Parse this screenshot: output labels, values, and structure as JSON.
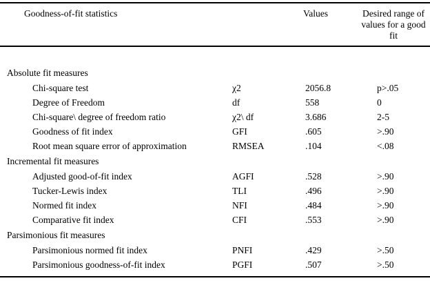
{
  "table": {
    "header": {
      "statistics_label": "Goodness-of-fit statistics",
      "values_label": "Values",
      "desired_label": "Desired range of values for a good fit"
    },
    "sections": [
      {
        "title": "Absolute fit measures",
        "rows": [
          {
            "label": "Chi-square test",
            "symbol": "χ2",
            "value": "2056.8",
            "desired": "p>.05"
          },
          {
            "label": "Degree of Freedom",
            "symbol": "df",
            "value": "558",
            "desired": "0"
          },
          {
            "label": "Chi-square\\ degree of freedom ratio",
            "symbol": "χ2\\ df",
            "value": "3.686",
            "desired": "2-5"
          },
          {
            "label": "Goodness of fit index",
            "symbol": "GFI",
            "value": ".605",
            "desired": ">.90"
          },
          {
            "label": "Root mean square error of approximation",
            "symbol": "RMSEA",
            "value": ".104",
            "desired": "<.08"
          }
        ]
      },
      {
        "title": "Incremental fit measures",
        "rows": [
          {
            "label": "Adjusted good-of-fit index",
            "symbol": "AGFI",
            "value": ".528",
            "desired": ">.90"
          },
          {
            "label": "Tucker-Lewis index",
            "symbol": "TLI",
            "value": ".496",
            "desired": ">.90"
          },
          {
            "label": "Normed fit index",
            "symbol": "NFI",
            "value": ".484",
            "desired": ">.90"
          },
          {
            "label": "Comparative fit index",
            "symbol": "CFI",
            "value": ".553",
            "desired": ">.90"
          }
        ]
      },
      {
        "title": "Parsimonious fit measures",
        "rows": [
          {
            "label": "Parsimonious normed fit index",
            "symbol": "PNFI",
            "value": ".429",
            "desired": ">.50"
          },
          {
            "label": "Parsimonious goodness-of-fit index",
            "symbol": "PGFI",
            "value": ".507",
            "desired": ">.50"
          }
        ]
      }
    ]
  }
}
